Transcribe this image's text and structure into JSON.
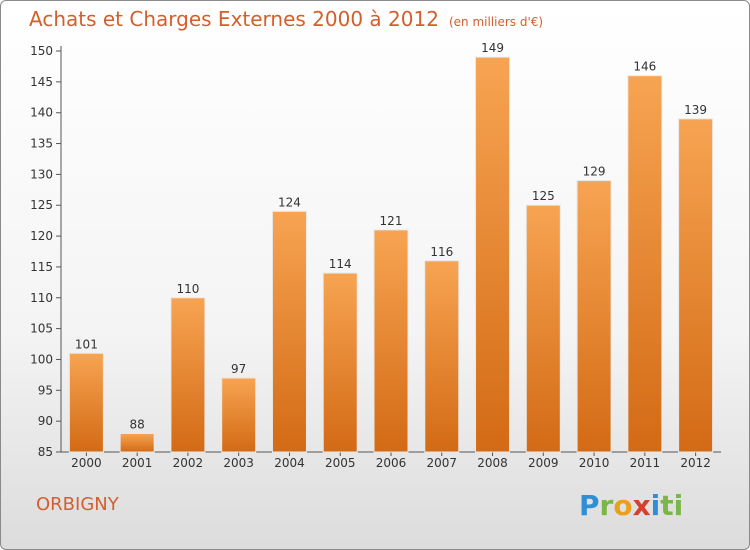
{
  "header": {
    "title": "Achats et Charges Externes 2000 à 2012",
    "unit": "(en milliers d'€)"
  },
  "footer": {
    "town": "ORBIGNY",
    "logo": "Proxiti"
  },
  "colors": {
    "bar_top": "#f7a452",
    "bar_bottom": "#d36a15",
    "title": "#d35f2c"
  },
  "chart_data": {
    "type": "bar",
    "title": "Achats et Charges Externes 2000 à 2012",
    "subtitle": "(en milliers d'€)",
    "categories": [
      "2000",
      "2001",
      "2002",
      "2003",
      "2004",
      "2005",
      "2006",
      "2007",
      "2008",
      "2009",
      "2010",
      "2011",
      "2012"
    ],
    "values": [
      101,
      88,
      110,
      97,
      124,
      114,
      121,
      116,
      149,
      125,
      129,
      146,
      139
    ],
    "ylim": [
      85,
      150
    ],
    "yticks": [
      85,
      90,
      95,
      100,
      105,
      110,
      115,
      120,
      125,
      130,
      135,
      140,
      145,
      150
    ],
    "grid": false,
    "legend": "none"
  }
}
